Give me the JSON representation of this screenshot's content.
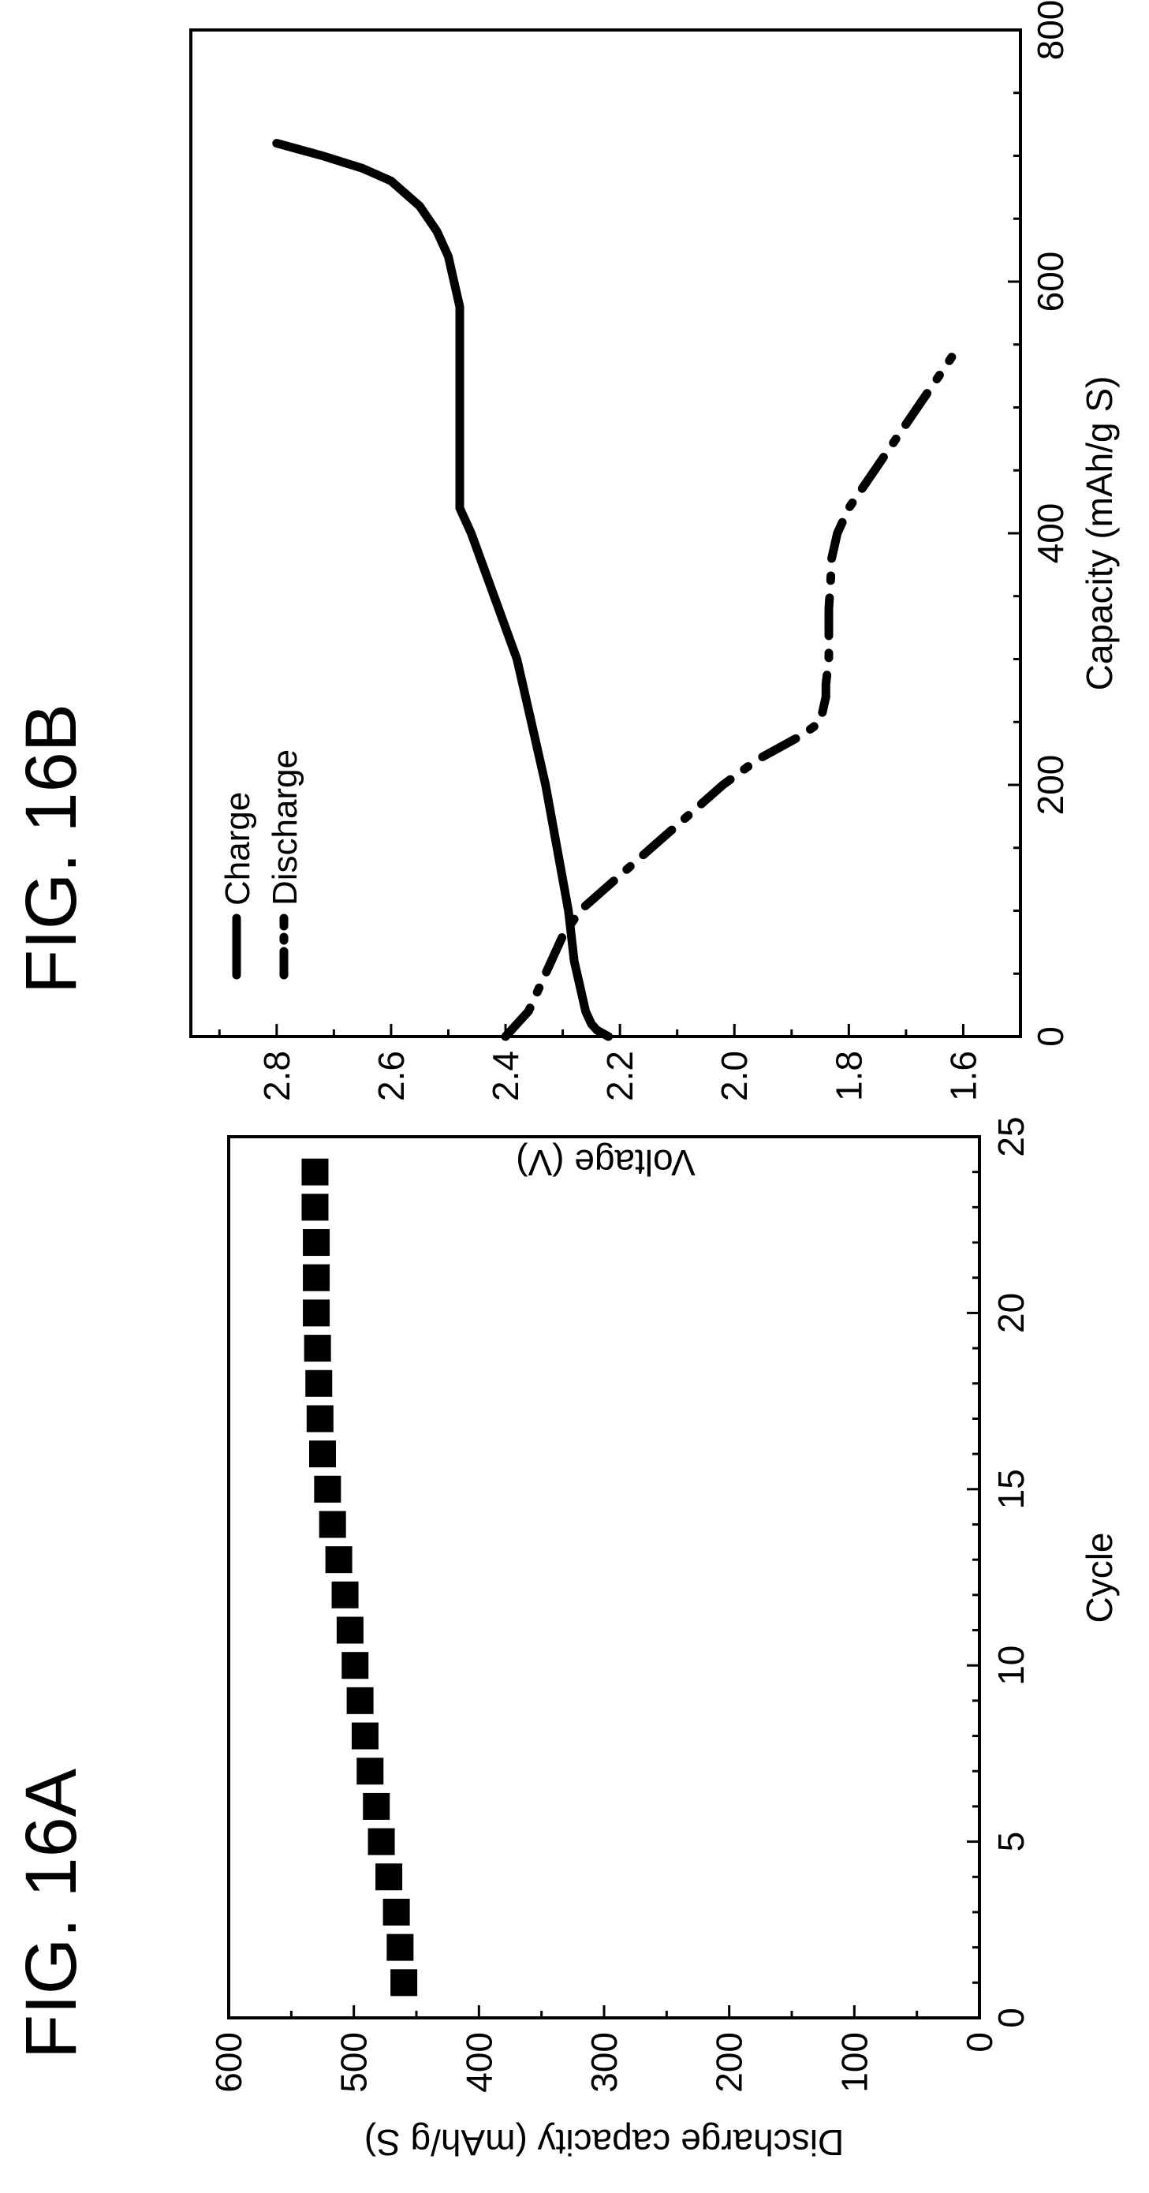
{
  "figures": [
    {
      "label": "FIG. 16A"
    },
    {
      "label": "FIG. 16B"
    }
  ],
  "chart_data": [
    {
      "id": "16A",
      "type": "scatter",
      "xlabel": "Cycle",
      "ylabel": "Discharge capacity (mAh/g S)",
      "xlim": [
        0,
        25
      ],
      "ylim": [
        0,
        600
      ],
      "xticks": [
        "0",
        "5",
        "10",
        "15",
        "20",
        "25"
      ],
      "yticks": [
        "0",
        "100",
        "200",
        "300",
        "400",
        "500",
        "600"
      ],
      "x": [
        1,
        2,
        3,
        4,
        5,
        6,
        7,
        8,
        9,
        10,
        11,
        12,
        13,
        14,
        15,
        16,
        17,
        18,
        19,
        20,
        21,
        22,
        23,
        24
      ],
      "y": [
        460,
        463,
        466,
        472,
        478,
        482,
        487,
        491,
        495,
        499,
        503,
        507,
        512,
        517,
        521,
        525,
        527,
        528,
        529,
        530,
        530,
        530,
        531,
        531
      ],
      "grid": false
    },
    {
      "id": "16B",
      "type": "line",
      "xlabel": "Capacity (mAh/g S)",
      "ylabel": "Voltage (V)",
      "xlim": [
        0,
        800
      ],
      "ylim": [
        1.5,
        2.95
      ],
      "xticks": [
        "0",
        "200",
        "400",
        "600",
        "800"
      ],
      "yticks": [
        "1.6",
        "1.8",
        "2.0",
        "2.2",
        "2.4",
        "2.6",
        "2.8"
      ],
      "legend_position": "top-left",
      "grid": false,
      "series": [
        {
          "name": "Charge",
          "style": "solid",
          "x": [
            0,
            5,
            10,
            20,
            40,
            60,
            80,
            100,
            150,
            200,
            250,
            280,
            300,
            350,
            400,
            420,
            450,
            500,
            540,
            560,
            580,
            600,
            620,
            640,
            660,
            680,
            690,
            700,
            710
          ],
          "y": [
            2.22,
            2.24,
            2.25,
            2.26,
            2.27,
            2.28,
            2.285,
            2.29,
            2.31,
            2.33,
            2.355,
            2.37,
            2.38,
            2.42,
            2.46,
            2.48,
            2.48,
            2.48,
            2.48,
            2.48,
            2.48,
            2.49,
            2.5,
            2.52,
            2.55,
            2.6,
            2.65,
            2.72,
            2.8
          ]
        },
        {
          "name": "Discharge",
          "style": "dash-dot",
          "x": [
            0,
            5,
            10,
            20,
            30,
            40,
            60,
            80,
            100,
            120,
            140,
            160,
            180,
            200,
            210,
            220,
            230,
            240,
            250,
            260,
            270,
            280,
            300,
            320,
            340,
            360,
            380,
            400,
            420,
            440,
            460,
            480,
            500,
            520,
            540
          ],
          "y": [
            2.4,
            2.39,
            2.38,
            2.36,
            2.35,
            2.34,
            2.32,
            2.3,
            2.27,
            2.22,
            2.17,
            2.12,
            2.07,
            2.02,
            1.99,
            1.96,
            1.92,
            1.88,
            1.85,
            1.845,
            1.84,
            1.84,
            1.835,
            1.835,
            1.835,
            1.832,
            1.83,
            1.82,
            1.8,
            1.77,
            1.74,
            1.71,
            1.68,
            1.65,
            1.62
          ]
        }
      ]
    }
  ]
}
